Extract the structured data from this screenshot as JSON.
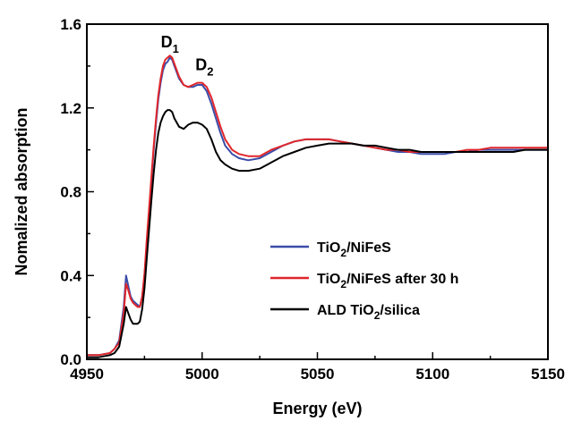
{
  "chart_data": {
    "type": "line",
    "xlabel": "Energy (eV)",
    "ylabel": "Nomalized absorption",
    "xlim": [
      4950,
      5150
    ],
    "ylim": [
      0,
      1.6
    ],
    "x_ticks": [
      "4950",
      "5000",
      "5050",
      "5100",
      "5150"
    ],
    "y_ticks": [
      "0.0",
      "0.4",
      "0.8",
      "1.2",
      "1.6"
    ],
    "legend_position": "bottom-right",
    "annotations": [
      {
        "id": "d1",
        "main": "D",
        "sub": "1",
        "x": 4986,
        "y": 1.43
      },
      {
        "id": "d2",
        "main": "D",
        "sub": "2",
        "x": 5001,
        "y": 1.32
      }
    ],
    "series": [
      {
        "id": "tio2-nifes",
        "legend": {
          "pre": "TiO",
          "sub": "2",
          "post": "/NiFeS"
        },
        "color": "#3a4ca8",
        "x": [
          4950,
          4955,
          4960,
          4962,
          4964,
          4966,
          4967,
          4968,
          4969,
          4970,
          4971,
          4972,
          4973,
          4974,
          4975,
          4976,
          4977,
          4978,
          4979,
          4980,
          4981,
          4982,
          4983,
          4984,
          4985,
          4986,
          4987,
          4988,
          4990,
          4992,
          4994,
          4996,
          4998,
          5000,
          5002,
          5004,
          5006,
          5008,
          5010,
          5013,
          5016,
          5020,
          5025,
          5030,
          5035,
          5040,
          5045,
          5050,
          5055,
          5060,
          5065,
          5070,
          5075,
          5080,
          5085,
          5090,
          5095,
          5100,
          5105,
          5110,
          5115,
          5120,
          5125,
          5130,
          5135,
          5140,
          5145,
          5150
        ],
        "values": [
          0.02,
          0.02,
          0.03,
          0.05,
          0.09,
          0.25,
          0.4,
          0.35,
          0.3,
          0.28,
          0.27,
          0.26,
          0.25,
          0.3,
          0.4,
          0.55,
          0.7,
          0.85,
          1.0,
          1.13,
          1.24,
          1.32,
          1.38,
          1.41,
          1.42,
          1.44,
          1.43,
          1.4,
          1.34,
          1.31,
          1.3,
          1.3,
          1.31,
          1.31,
          1.28,
          1.22,
          1.15,
          1.08,
          1.02,
          0.98,
          0.96,
          0.95,
          0.96,
          0.99,
          1.02,
          1.04,
          1.05,
          1.05,
          1.05,
          1.04,
          1.03,
          1.02,
          1.01,
          1.0,
          0.99,
          0.99,
          0.98,
          0.98,
          0.98,
          0.99,
          0.99,
          1.0,
          1.0,
          1.0,
          1.0,
          1.0,
          1.0,
          1.0
        ]
      },
      {
        "id": "tio2-nifes-30h",
        "legend": {
          "pre": "TiO",
          "sub": "2",
          "post": "/NiFeS after 30 h"
        },
        "color": "#e0262b",
        "x": [
          4950,
          4955,
          4960,
          4962,
          4964,
          4966,
          4967,
          4968,
          4969,
          4970,
          4971,
          4972,
          4973,
          4974,
          4975,
          4976,
          4977,
          4978,
          4979,
          4980,
          4981,
          4982,
          4983,
          4984,
          4985,
          4986,
          4987,
          4988,
          4990,
          4992,
          4994,
          4996,
          4998,
          5000,
          5002,
          5004,
          5006,
          5008,
          5010,
          5013,
          5016,
          5020,
          5025,
          5030,
          5035,
          5040,
          5045,
          5050,
          5055,
          5060,
          5065,
          5070,
          5075,
          5080,
          5085,
          5090,
          5095,
          5100,
          5105,
          5110,
          5115,
          5120,
          5125,
          5130,
          5135,
          5140,
          5145,
          5150
        ],
        "values": [
          0.02,
          0.02,
          0.03,
          0.05,
          0.08,
          0.22,
          0.36,
          0.33,
          0.29,
          0.27,
          0.26,
          0.25,
          0.25,
          0.3,
          0.41,
          0.57,
          0.72,
          0.87,
          1.02,
          1.15,
          1.26,
          1.34,
          1.4,
          1.43,
          1.44,
          1.45,
          1.44,
          1.41,
          1.35,
          1.31,
          1.3,
          1.31,
          1.32,
          1.32,
          1.3,
          1.25,
          1.18,
          1.11,
          1.05,
          1.0,
          0.98,
          0.97,
          0.97,
          1.0,
          1.02,
          1.04,
          1.05,
          1.05,
          1.05,
          1.04,
          1.03,
          1.02,
          1.01,
          1.0,
          1.0,
          0.99,
          0.99,
          0.99,
          0.99,
          0.99,
          1.0,
          1.0,
          1.01,
          1.01,
          1.01,
          1.01,
          1.01,
          1.01
        ]
      },
      {
        "id": "ald-tio2-silica",
        "legend": {
          "pre": "ALD TiO",
          "sub": "2",
          "post": "/silica"
        },
        "color": "#000000",
        "x": [
          4950,
          4955,
          4960,
          4962,
          4964,
          4966,
          4967,
          4968,
          4969,
          4970,
          4971,
          4972,
          4973,
          4974,
          4975,
          4976,
          4977,
          4978,
          4979,
          4980,
          4981,
          4982,
          4983,
          4984,
          4985,
          4986,
          4987,
          4988,
          4990,
          4992,
          4994,
          4996,
          4998,
          5000,
          5002,
          5004,
          5006,
          5008,
          5010,
          5013,
          5016,
          5020,
          5025,
          5030,
          5035,
          5040,
          5045,
          5050,
          5055,
          5060,
          5065,
          5070,
          5075,
          5080,
          5085,
          5090,
          5095,
          5100,
          5105,
          5110,
          5115,
          5120,
          5125,
          5130,
          5135,
          5140,
          5145,
          5150
        ],
        "values": [
          0.01,
          0.01,
          0.02,
          0.03,
          0.06,
          0.17,
          0.25,
          0.22,
          0.19,
          0.17,
          0.17,
          0.17,
          0.18,
          0.24,
          0.34,
          0.48,
          0.62,
          0.76,
          0.89,
          1.0,
          1.08,
          1.13,
          1.16,
          1.18,
          1.19,
          1.19,
          1.18,
          1.15,
          1.11,
          1.1,
          1.12,
          1.13,
          1.13,
          1.12,
          1.1,
          1.05,
          0.99,
          0.95,
          0.93,
          0.91,
          0.9,
          0.9,
          0.91,
          0.94,
          0.97,
          0.99,
          1.01,
          1.02,
          1.03,
          1.03,
          1.03,
          1.02,
          1.02,
          1.01,
          1.0,
          1.0,
          0.99,
          0.99,
          0.99,
          0.99,
          0.99,
          0.99,
          0.99,
          0.99,
          0.99,
          1.0,
          1.0,
          1.0
        ]
      }
    ]
  }
}
